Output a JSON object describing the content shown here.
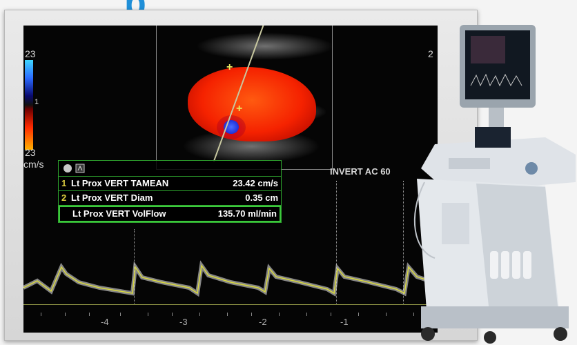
{
  "heading": {
    "text": "p"
  },
  "scale": {
    "top": "23",
    "mid": "1",
    "bottom": "23",
    "unit": "cm/s"
  },
  "right_number": "2",
  "measurements": [
    {
      "index": "1",
      "label": "Lt Prox VERT TAMEAN",
      "value": "23.42 cm/s"
    },
    {
      "index": "2",
      "label": "Lt Prox VERT Diam",
      "value": "0.35 cm"
    },
    {
      "index": "",
      "label": "Lt Prox VERT VolFlow",
      "value": "135.70 ml/min"
    }
  ],
  "settings_text": "INVERT  AC 60",
  "time_ticks": [
    "-4",
    "-3",
    "-2",
    "-1"
  ],
  "colors": {
    "frame": "#d6d6d6",
    "screen": "#050505",
    "table_border": "#2ea52e",
    "trace": "#d9d940",
    "heading": "#1f8fd8"
  },
  "icons": [
    "circle-icon",
    "measurement-icon"
  ]
}
